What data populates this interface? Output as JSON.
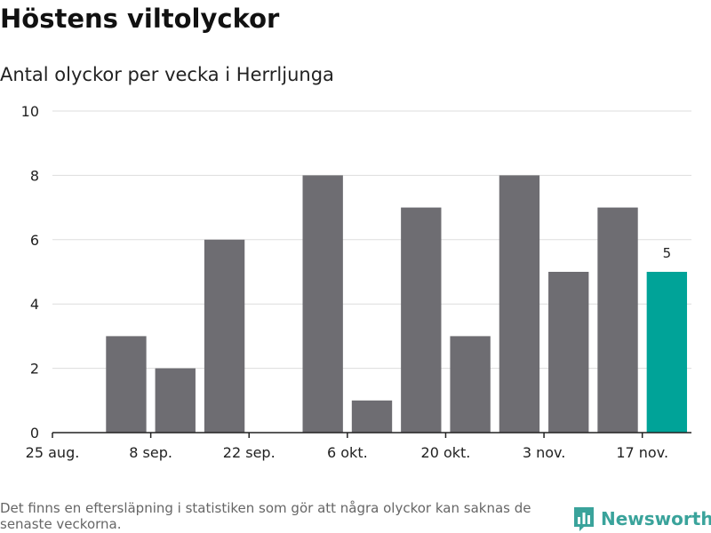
{
  "header": {
    "title": "Höstens viltolyckor",
    "subtitle": "Antal olyckor per vecka i Herrljunga"
  },
  "footer": {
    "note": "Det finns en eftersläpning i statistiken som gör att några olyckor kan saknas de senaste veckorna.",
    "brand": "Newsworthy"
  },
  "colors": {
    "bar": "#6e6d72",
    "highlight": "#00a398",
    "grid": "#dddddd",
    "axis": "#222222",
    "brand": "#3aa39b"
  },
  "chart_data": {
    "type": "bar",
    "title": "Höstens viltolyckor",
    "subtitle": "Antal olyckor per vecka i Herrljunga",
    "xlabel": "",
    "ylabel": "",
    "ylim": [
      0,
      10
    ],
    "yticks": [
      0,
      2,
      4,
      6,
      8,
      10
    ],
    "grid": true,
    "x_ticks": [
      {
        "label": "25 aug.",
        "week": 0
      },
      {
        "label": "8 sep.",
        "week": 2
      },
      {
        "label": "22 sep.",
        "week": 4
      },
      {
        "label": "6 okt.",
        "week": 6
      },
      {
        "label": "20 okt.",
        "week": 8
      },
      {
        "label": "3 nov.",
        "week": 10
      },
      {
        "label": "17 nov.",
        "week": 12
      }
    ],
    "week_count": 13,
    "bars": [
      {
        "week": 1,
        "value": 3
      },
      {
        "week": 2,
        "value": 2
      },
      {
        "week": 3,
        "value": 6
      },
      {
        "week": 4,
        "value": 0
      },
      {
        "week": 5,
        "value": 8
      },
      {
        "week": 6,
        "value": 1
      },
      {
        "week": 7,
        "value": 7
      },
      {
        "week": 8,
        "value": 3
      },
      {
        "week": 9,
        "value": 8
      },
      {
        "week": 10,
        "value": 5
      },
      {
        "week": 11,
        "value": 7
      },
      {
        "week": 12,
        "value": 5,
        "highlight": true,
        "label": "5"
      }
    ]
  }
}
